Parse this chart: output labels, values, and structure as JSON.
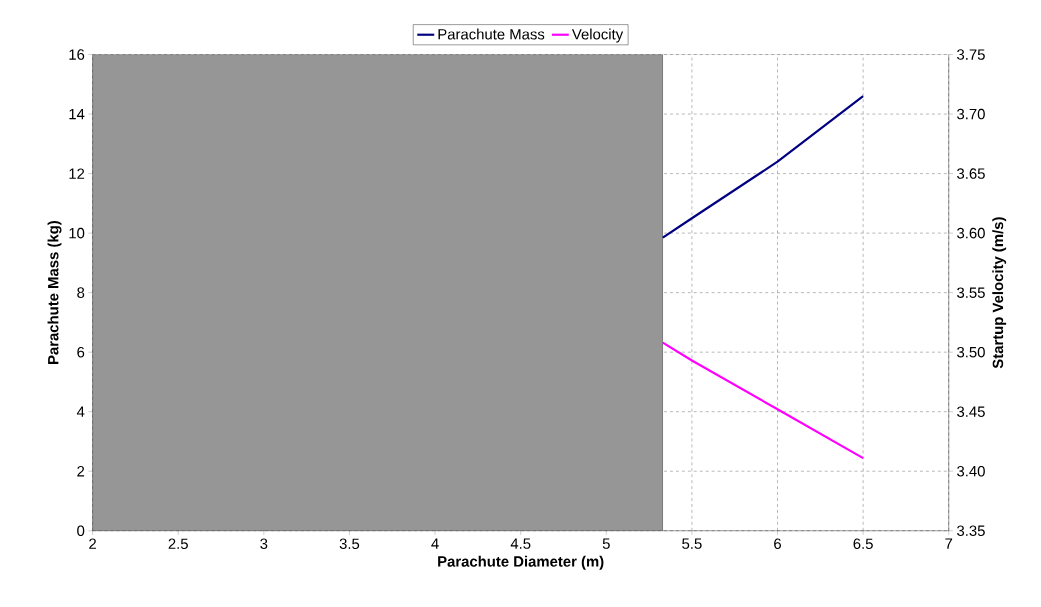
{
  "chart_data": {
    "type": "line",
    "xlabel": "Parachute Diameter (m)",
    "ylabel": "Parachute Mass (kg)",
    "y2label": "Startup Velocity (m/s)",
    "series": [
      {
        "name": "Parachute Mass",
        "color": "#000080",
        "x": [
          5.33,
          5.5,
          6,
          6.5
        ],
        "values": [
          9.85,
          10.5,
          12.4,
          14.6
        ]
      },
      {
        "name": "Velocity",
        "color": "#ff00ff",
        "axis": "y2",
        "x": [
          5.33,
          5.5,
          6,
          6.5
        ],
        "values": [
          3.508,
          3.493,
          3.452,
          3.411
        ]
      }
    ],
    "xlim": [
      2,
      7
    ],
    "xticks": [
      2,
      2.5,
      3,
      3.5,
      4,
      4.5,
      5,
      5.5,
      6,
      6.5,
      7
    ],
    "ylim": [
      0,
      16
    ],
    "yticks": [
      0,
      2,
      4,
      6,
      8,
      10,
      12,
      14,
      16
    ],
    "y2lim": [
      3.35,
      3.75
    ],
    "y2ticks": [
      {
        "value": 3.35,
        "label": "3.35"
      },
      {
        "value": 3.4,
        "label": "3.40"
      },
      {
        "value": 3.45,
        "label": "3.45"
      },
      {
        "value": 3.5,
        "label": "3.50"
      },
      {
        "value": 3.55,
        "label": "3.55"
      },
      {
        "value": 3.6,
        "label": "3.60"
      },
      {
        "value": 3.65,
        "label": "3.65"
      },
      {
        "value": 3.7,
        "label": "3.70"
      },
      {
        "value": 3.75,
        "label": "3.75"
      }
    ],
    "bands": [
      {
        "axis": "x",
        "from": 2,
        "to": 5.33,
        "color": "#969696"
      }
    ],
    "grid": true,
    "legend": "top",
    "line_style": "solid",
    "marker": "none"
  }
}
